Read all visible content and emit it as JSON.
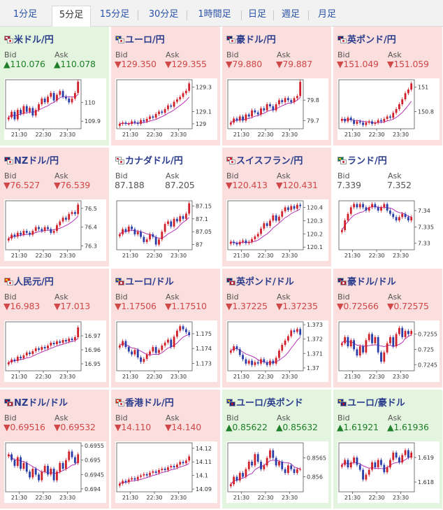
{
  "tabs": [
    {
      "label": "1分足",
      "active": false
    },
    {
      "label": "5分足",
      "active": true
    },
    {
      "label": "15分足",
      "active": false
    },
    {
      "label": "30分足",
      "active": false
    },
    {
      "label": "1時間足",
      "active": false
    },
    {
      "label": "日足",
      "active": false
    },
    {
      "label": "週足",
      "active": false
    },
    {
      "label": "月足",
      "active": false
    }
  ],
  "labels": {
    "bid": "Bid",
    "ask": "Ask"
  },
  "colors": {
    "up_bg": "#e3f5de",
    "down_bg": "#fbdede",
    "up_text": "#1f7f2a",
    "down_text": "#d04848",
    "candle_up": "#d0202a",
    "candle_down": "#2a3ca8",
    "ma": "#b020b0"
  },
  "pairs": [
    {
      "name": "米ドル/円",
      "flag": "us-jp",
      "trend": "up",
      "bid": "▲110.076",
      "ask": "▲110.078",
      "chart": {
        "y_ticks": [
          "110",
          "109.9"
        ],
        "x_ticks": [
          "21:30",
          "22:30",
          "23:30"
        ],
        "ymin": 109.86,
        "ymax": 110.12,
        "close": [
          109.92,
          109.95,
          109.91,
          109.96,
          109.94,
          109.98,
          109.95,
          109.97,
          109.93,
          109.96,
          109.99,
          110.02,
          110.0,
          110.03,
          110.05,
          110.01,
          110.04,
          110.06,
          110.03,
          110.02,
          110.0,
          110.02,
          110.05,
          110.11
        ]
      }
    },
    {
      "name": "ユーロ/円",
      "flag": "eu-jp",
      "trend": "down",
      "bid": "▼129.350",
      "ask": "▼129.355",
      "chart": {
        "y_ticks": [
          "129.3",
          "129.1",
          "129"
        ],
        "x_ticks": [
          "21:30",
          "22:30",
          "23:30"
        ],
        "ymin": 128.96,
        "ymax": 129.36,
        "close": [
          129.0,
          129.01,
          129.0,
          129.0,
          129.02,
          129.01,
          129.0,
          129.03,
          129.02,
          129.04,
          129.06,
          129.05,
          129.08,
          129.1,
          129.09,
          129.12,
          129.15,
          129.14,
          129.18,
          129.2,
          129.22,
          129.25,
          129.27,
          129.33
        ]
      }
    },
    {
      "name": "豪ドル/円",
      "flag": "au-jp",
      "trend": "down",
      "bid": "▼79.880",
      "ask": "▼79.887",
      "chart": {
        "y_ticks": [
          "79.8",
          "79.7"
        ],
        "x_ticks": [
          "21:30",
          "22:30",
          "23:30"
        ],
        "ymin": 79.66,
        "ymax": 79.9,
        "close": [
          79.69,
          79.71,
          79.7,
          79.72,
          79.7,
          79.73,
          79.72,
          79.75,
          79.74,
          79.73,
          79.76,
          79.75,
          79.78,
          79.77,
          79.75,
          79.78,
          79.8,
          79.79,
          79.81,
          79.8,
          79.79,
          79.81,
          79.82,
          79.89
        ]
      }
    },
    {
      "name": "英ポンド/円",
      "flag": "gb-jp",
      "trend": "down",
      "bid": "▼151.049",
      "ask": "▼151.059",
      "chart": {
        "y_ticks": [
          "151",
          "150.8"
        ],
        "x_ticks": [
          "21:30",
          "22:30",
          "23:30"
        ],
        "ymin": 150.66,
        "ymax": 151.06,
        "close": [
          150.74,
          150.72,
          150.75,
          150.73,
          150.7,
          150.72,
          150.71,
          150.69,
          150.71,
          150.72,
          150.7,
          150.71,
          150.73,
          150.72,
          150.74,
          150.76,
          150.75,
          150.79,
          150.82,
          150.86,
          150.9,
          150.95,
          150.98,
          151.03
        ]
      }
    },
    {
      "name": "NZドル/円",
      "flag": "nz-jp",
      "trend": "down",
      "bid": "▼76.527",
      "ask": "▼76.539",
      "chart": {
        "y_ticks": [
          "76.5",
          "76.4",
          "76.3"
        ],
        "x_ticks": [
          "21:30",
          "22:30",
          "23:30"
        ],
        "ymin": 76.28,
        "ymax": 76.54,
        "close": [
          76.34,
          76.36,
          76.35,
          76.37,
          76.36,
          76.38,
          76.37,
          76.36,
          76.38,
          76.4,
          76.39,
          76.38,
          76.4,
          76.39,
          76.37,
          76.38,
          76.41,
          76.43,
          76.45,
          76.44,
          76.47,
          76.48,
          76.47,
          76.52
        ]
      }
    },
    {
      "name": "カナダドル/円",
      "flag": "ca-jp",
      "trend": "flat",
      "bid": "87.188",
      "ask": "87.205",
      "chart": {
        "y_ticks": [
          "87.15",
          "87.1",
          "87.05",
          "87"
        ],
        "x_ticks": [
          "21:30",
          "22:30",
          "23:30"
        ],
        "ymin": 86.98,
        "ymax": 87.17,
        "close": [
          87.04,
          87.06,
          87.05,
          87.07,
          87.06,
          87.04,
          87.05,
          87.03,
          87.01,
          87.02,
          87.04,
          87.03,
          87.0,
          87.02,
          87.05,
          87.08,
          87.09,
          87.07,
          87.1,
          87.09,
          87.11,
          87.1,
          87.12,
          87.16
        ]
      }
    },
    {
      "name": "スイスフラン/円",
      "flag": "ch-jp",
      "trend": "down",
      "bid": "▼120.413",
      "ask": "▼120.431",
      "chart": {
        "y_ticks": [
          "120.4",
          "120.3",
          "120.2",
          "120.1"
        ],
        "x_ticks": [
          "21:30",
          "22:30",
          "23:30"
        ],
        "ymin": 120.08,
        "ymax": 120.45,
        "close": [
          120.14,
          120.13,
          120.12,
          120.14,
          120.15,
          120.13,
          120.14,
          120.16,
          120.18,
          120.2,
          120.24,
          120.28,
          120.26,
          120.3,
          120.34,
          120.3,
          120.33,
          120.37,
          120.4,
          120.38,
          120.41,
          120.39,
          120.42,
          120.41
        ]
      }
    },
    {
      "name": "ランド/円",
      "flag": "za-jp",
      "trend": "flat",
      "bid": "7.339",
      "ask": "7.352",
      "chart": {
        "y_ticks": [
          "7.34",
          "7.335",
          "7.33"
        ],
        "x_ticks": [
          "21:30",
          "22:30",
          "23:30"
        ],
        "ymin": 7.328,
        "ymax": 7.343,
        "close": [
          7.334,
          7.337,
          7.339,
          7.341,
          7.342,
          7.341,
          7.342,
          7.341,
          7.34,
          7.341,
          7.342,
          7.341,
          7.34,
          7.341,
          7.342,
          7.34,
          7.339,
          7.338,
          7.337,
          7.338,
          7.339,
          7.338,
          7.337,
          7.338
        ]
      }
    },
    {
      "name": "人民元/円",
      "flag": "cn-jp",
      "trend": "down",
      "bid": "▼16.983",
      "ask": "▼17.013",
      "chart": {
        "y_ticks": [
          "16.97",
          "16.96",
          "16.95"
        ],
        "x_ticks": [
          "21:30",
          "22:30",
          "23:30"
        ],
        "ymin": 16.945,
        "ymax": 16.98,
        "close": [
          16.951,
          16.953,
          16.952,
          16.955,
          16.954,
          16.956,
          16.958,
          16.957,
          16.959,
          16.961,
          16.96,
          16.962,
          16.961,
          16.963,
          16.965,
          16.964,
          16.966,
          16.965,
          16.967,
          16.966,
          16.968,
          16.967,
          16.969,
          16.976
        ]
      }
    },
    {
      "name": "ユーロ/ドル",
      "flag": "eu-us",
      "trend": "down",
      "bid": "▼1.17506",
      "ask": "▼1.17510",
      "chart": {
        "y_ticks": [
          "1.175",
          "1.174",
          "1.173"
        ],
        "x_ticks": [
          "21:30",
          "22:30",
          "23:30"
        ],
        "ymin": 1.1725,
        "ymax": 1.1758,
        "close": [
          1.1742,
          1.1745,
          1.1741,
          1.1738,
          1.1736,
          1.1739,
          1.1734,
          1.1731,
          1.1733,
          1.1736,
          1.1738,
          1.1741,
          1.1737,
          1.1739,
          1.1742,
          1.1744,
          1.1746,
          1.1741,
          1.1748,
          1.1752,
          1.1755,
          1.1753,
          1.1751,
          1.1749
        ]
      }
    },
    {
      "name": "英ポンド/ドル",
      "flag": "gb-us",
      "trend": "down",
      "bid": "▼1.37225",
      "ask": "▼1.37235",
      "chart": {
        "y_ticks": [
          "1.373",
          "1.372",
          "1.371",
          "1.37"
        ],
        "x_ticks": [
          "21:30",
          "22:30",
          "23:30"
        ],
        "ymin": 1.3698,
        "ymax": 1.3732,
        "close": [
          1.3712,
          1.3715,
          1.3713,
          1.3709,
          1.3706,
          1.3703,
          1.3705,
          1.3702,
          1.3704,
          1.3703,
          1.3706,
          1.3704,
          1.3702,
          1.3705,
          1.3703,
          1.3707,
          1.3712,
          1.3716,
          1.3719,
          1.3722,
          1.3726,
          1.3725,
          1.3727,
          1.3723
        ]
      }
    },
    {
      "name": "豪ドル/ドル",
      "flag": "au-us",
      "trend": "down",
      "bid": "▼0.72566",
      "ask": "▼0.72575",
      "chart": {
        "y_ticks": [
          "0.7255",
          "0.725",
          "0.7245"
        ],
        "x_ticks": [
          "21:30",
          "22:30",
          "23:30"
        ],
        "ymin": 0.7243,
        "ymax": 0.7259,
        "close": [
          0.7252,
          0.7254,
          0.7251,
          0.7253,
          0.725,
          0.7248,
          0.7251,
          0.7249,
          0.7253,
          0.7255,
          0.7252,
          0.7254,
          0.7249,
          0.7246,
          0.7249,
          0.7252,
          0.7254,
          0.7251,
          0.7255,
          0.7257,
          0.7254,
          0.7256,
          0.7255,
          0.7256
        ]
      }
    },
    {
      "name": "NZドル/ドル",
      "flag": "nz-us",
      "trend": "down",
      "bid": "▼0.69516",
      "ask": "▼0.69532",
      "chart": {
        "y_ticks": [
          "0.6955",
          "0.695",
          "0.6945",
          "0.694"
        ],
        "x_ticks": [
          "21:30",
          "22:30",
          "23:30"
        ],
        "ymin": 0.6939,
        "ymax": 0.6956,
        "close": [
          0.6952,
          0.695,
          0.6948,
          0.6951,
          0.6947,
          0.6949,
          0.6946,
          0.6944,
          0.6947,
          0.6945,
          0.6943,
          0.6946,
          0.6948,
          0.6945,
          0.6947,
          0.6943,
          0.6946,
          0.6949,
          0.6947,
          0.695,
          0.6953,
          0.6951,
          0.6949,
          0.6952
        ]
      }
    },
    {
      "name": "香港ドル/円",
      "flag": "hk-jp",
      "trend": "down",
      "bid": "▼14.110",
      "ask": "▼14.140",
      "chart": {
        "y_ticks": [
          "14.12",
          "14.11",
          "14.1",
          "14.09"
        ],
        "x_ticks": [
          "21:30",
          "22:30",
          "23:30"
        ],
        "ymin": 14.088,
        "ymax": 14.124,
        "close": [
          14.094,
          14.096,
          14.095,
          14.097,
          14.098,
          14.097,
          14.099,
          14.1,
          14.101,
          14.1,
          14.102,
          14.103,
          14.102,
          14.104,
          14.105,
          14.104,
          14.106,
          14.107,
          14.106,
          14.108,
          14.11,
          14.109,
          14.111,
          14.114
        ]
      }
    },
    {
      "name": "ユーロ/英ポンド",
      "flag": "eu-gb",
      "trend": "up",
      "bid": "▲0.85622",
      "ask": "▲0.85632",
      "chart": {
        "y_ticks": [
          "0.8565",
          "0.856"
        ],
        "x_ticks": [
          "21:30",
          "22:30",
          "23:30"
        ],
        "ymin": 0.8556,
        "ymax": 0.8569,
        "close": [
          0.8558,
          0.856,
          0.8559,
          0.8561,
          0.856,
          0.8562,
          0.8564,
          0.8563,
          0.8566,
          0.8564,
          0.8562,
          0.8563,
          0.8565,
          0.8567,
          0.8565,
          0.8563,
          0.8564,
          0.8562,
          0.8561,
          0.8563,
          0.8562,
          0.8561,
          0.8562,
          0.8562
        ]
      }
    },
    {
      "name": "ユーロ/豪ドル",
      "flag": "eu-au",
      "trend": "up",
      "bid": "▲1.61921",
      "ask": "▲1.61936",
      "chart": {
        "y_ticks": [
          "1.619",
          "1.618"
        ],
        "x_ticks": [
          "21:30",
          "22:30",
          "23:30"
        ],
        "ymin": 1.6176,
        "ymax": 1.6196,
        "close": [
          1.6187,
          1.6189,
          1.6186,
          1.6188,
          1.619,
          1.6187,
          1.6185,
          1.6181,
          1.6183,
          1.6185,
          1.6188,
          1.6186,
          1.6189,
          1.6187,
          1.6184,
          1.6186,
          1.6189,
          1.6192,
          1.619,
          1.6188,
          1.6191,
          1.6193,
          1.619,
          1.6192
        ]
      }
    }
  ]
}
